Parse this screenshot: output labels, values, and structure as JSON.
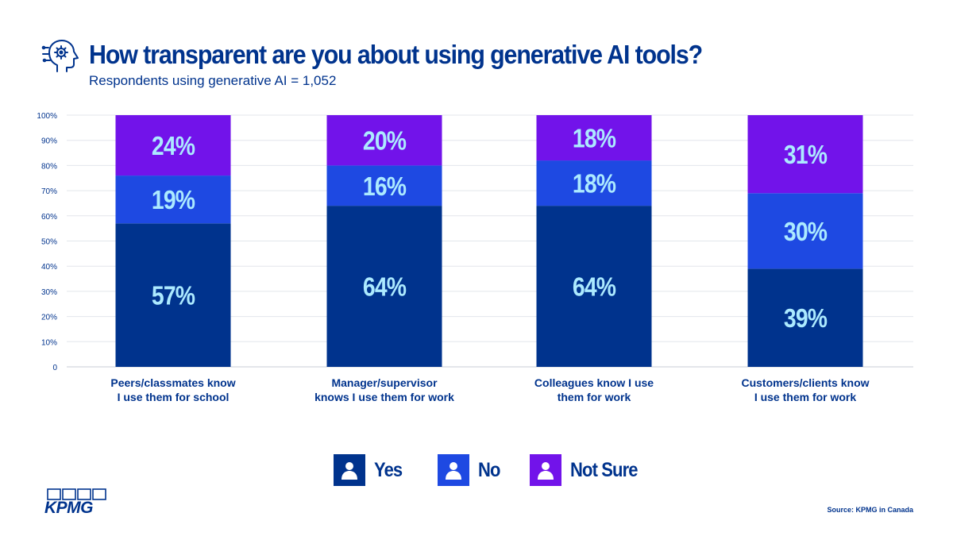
{
  "header": {
    "title": "How transparent are you about using generative AI tools?",
    "subtitle": "Respondents using generative AI = 1,052",
    "icon": "ai-head-icon"
  },
  "chart_data": {
    "type": "bar",
    "stacked": true,
    "categories": [
      [
        "Peers/classmates know",
        "I use them for school"
      ],
      [
        "Manager/supervisor",
        "knows I use them for work"
      ],
      [
        "Colleagues know I use",
        "them for work"
      ],
      [
        "Customers/clients know",
        "I use them for work"
      ]
    ],
    "series": [
      {
        "name": "Yes",
        "values": [
          57,
          64,
          64,
          39
        ],
        "labels": [
          "57%",
          "64%",
          "64%",
          "39%"
        ],
        "color": "#00338D"
      },
      {
        "name": "No",
        "values": [
          19,
          16,
          18,
          30
        ],
        "labels": [
          "19%",
          "16%",
          "18%",
          "30%"
        ],
        "color": "#1E49E2"
      },
      {
        "name": "Not Sure",
        "values": [
          24,
          20,
          18,
          31
        ],
        "labels": [
          "24%",
          "20%",
          "18%",
          "31%"
        ],
        "color": "#7213EA"
      }
    ],
    "yticks": [
      "0",
      "10%",
      "20%",
      "30%",
      "40%",
      "50%",
      "60%",
      "70%",
      "80%",
      "90%",
      "100%"
    ],
    "ylim": [
      0,
      100
    ],
    "grid": true,
    "legend_position": "bottom",
    "data_label_color": "#ACEAFF"
  },
  "legend": {
    "icon": "person-icon"
  },
  "footer": {
    "source": "Source: KPMG in Canada",
    "logo_text": "KPMG"
  }
}
